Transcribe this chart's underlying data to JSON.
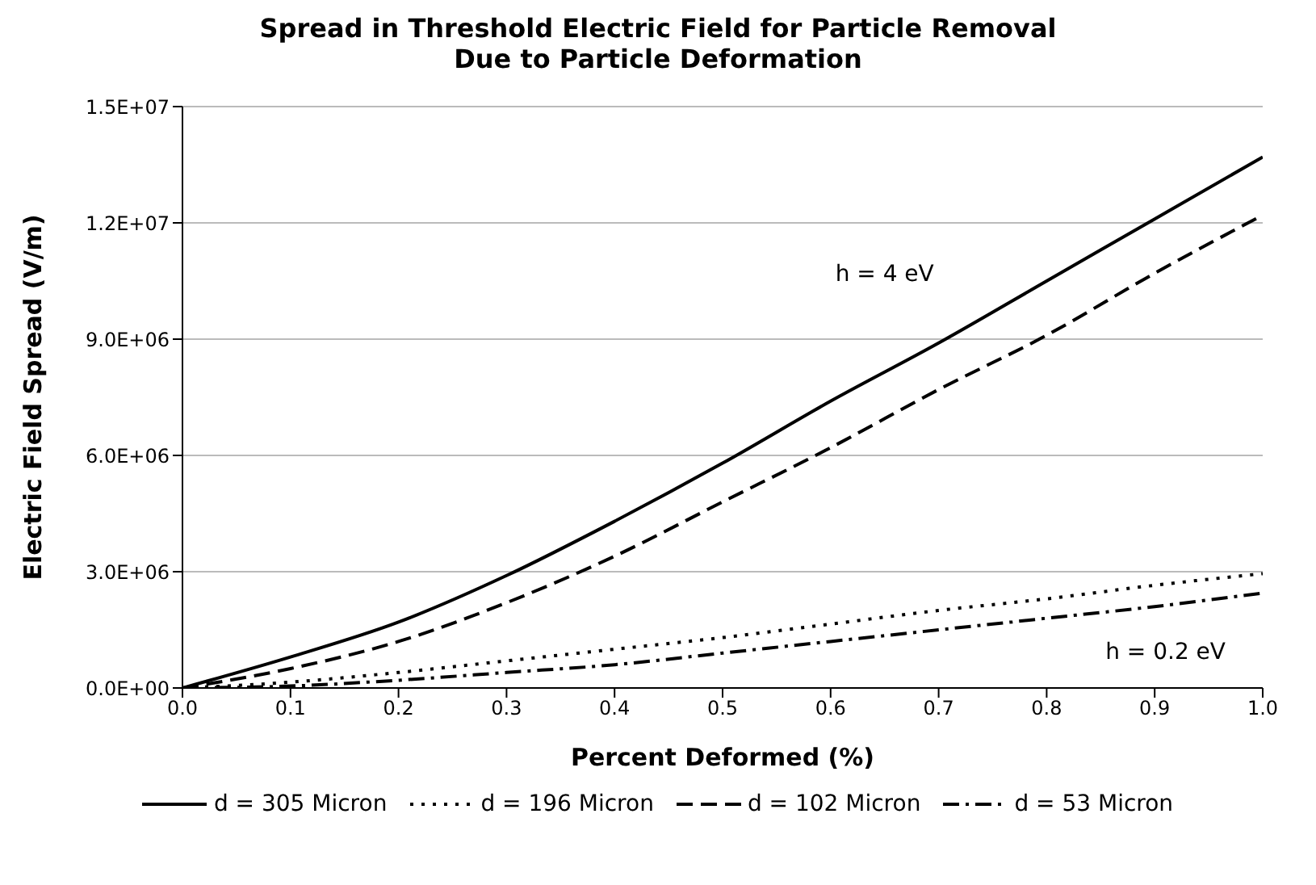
{
  "chart_data": {
    "type": "line",
    "title": "Spread in Threshold Electric Field for Particle Removal Due to Particle Deformation",
    "xlabel": "Percent Deformed (%)",
    "ylabel": "Electric Field Spread (V/m)",
    "x": [
      0,
      0.1,
      0.2,
      0.3,
      0.4,
      0.5,
      0.6,
      0.7,
      0.8,
      0.9,
      1.0
    ],
    "series": [
      {
        "name": "d = 305 Micron",
        "color": "#000000",
        "line_style": "solid",
        "values": [
          0,
          800000,
          1700000,
          2900000,
          4300000,
          5800000,
          7400000,
          8900000,
          10500000,
          12100000,
          13700000
        ]
      },
      {
        "name": "d = 196 Micron",
        "color": "#000000",
        "line_style": "dotted",
        "values": [
          0,
          150000,
          400000,
          700000,
          1000000,
          1300000,
          1650000,
          2000000,
          2300000,
          2650000,
          2950000
        ]
      },
      {
        "name": "d = 102 Micron",
        "color": "#000000",
        "line_style": "dashed",
        "values": [
          0,
          500000,
          1200000,
          2200000,
          3400000,
          4800000,
          6200000,
          7700000,
          9100000,
          10700000,
          12200000
        ]
      },
      {
        "name": "d = 53 Micron",
        "color": "#000000",
        "line_style": "dashdot",
        "values": [
          0,
          50000,
          200000,
          400000,
          600000,
          900000,
          1200000,
          1500000,
          1800000,
          2100000,
          2450000
        ]
      }
    ],
    "annotations": [
      "h = 4 eV",
      "h = 0.2 eV"
    ],
    "xlim": [
      0,
      1
    ],
    "xticks": [
      {
        "value": 0,
        "label": "0.0"
      },
      {
        "value": 0.1,
        "label": "0.1"
      },
      {
        "value": 0.2,
        "label": "0.2"
      },
      {
        "value": 0.3,
        "label": "0.3"
      },
      {
        "value": 0.4,
        "label": "0.4"
      },
      {
        "value": 0.5,
        "label": "0.5"
      },
      {
        "value": 0.6,
        "label": "0.6"
      },
      {
        "value": 0.7,
        "label": "0.7"
      },
      {
        "value": 0.8,
        "label": "0.8"
      },
      {
        "value": 0.9,
        "label": "0.9"
      },
      {
        "value": 1,
        "label": "1.0"
      }
    ],
    "ylim": [
      0,
      15000000
    ],
    "yticks": [
      {
        "value": 0,
        "label": "0.0E+00"
      },
      {
        "value": 3000000,
        "label": "3.0E+06"
      },
      {
        "value": 6000000,
        "label": "6.0E+06"
      },
      {
        "value": 9000000,
        "label": "9.0E+06"
      },
      {
        "value": 12000000,
        "label": "1.2E+07"
      },
      {
        "value": 15000000,
        "label": "1.5E+07"
      }
    ],
    "grid": "y",
    "legend": "bottom",
    "marker": "none"
  }
}
